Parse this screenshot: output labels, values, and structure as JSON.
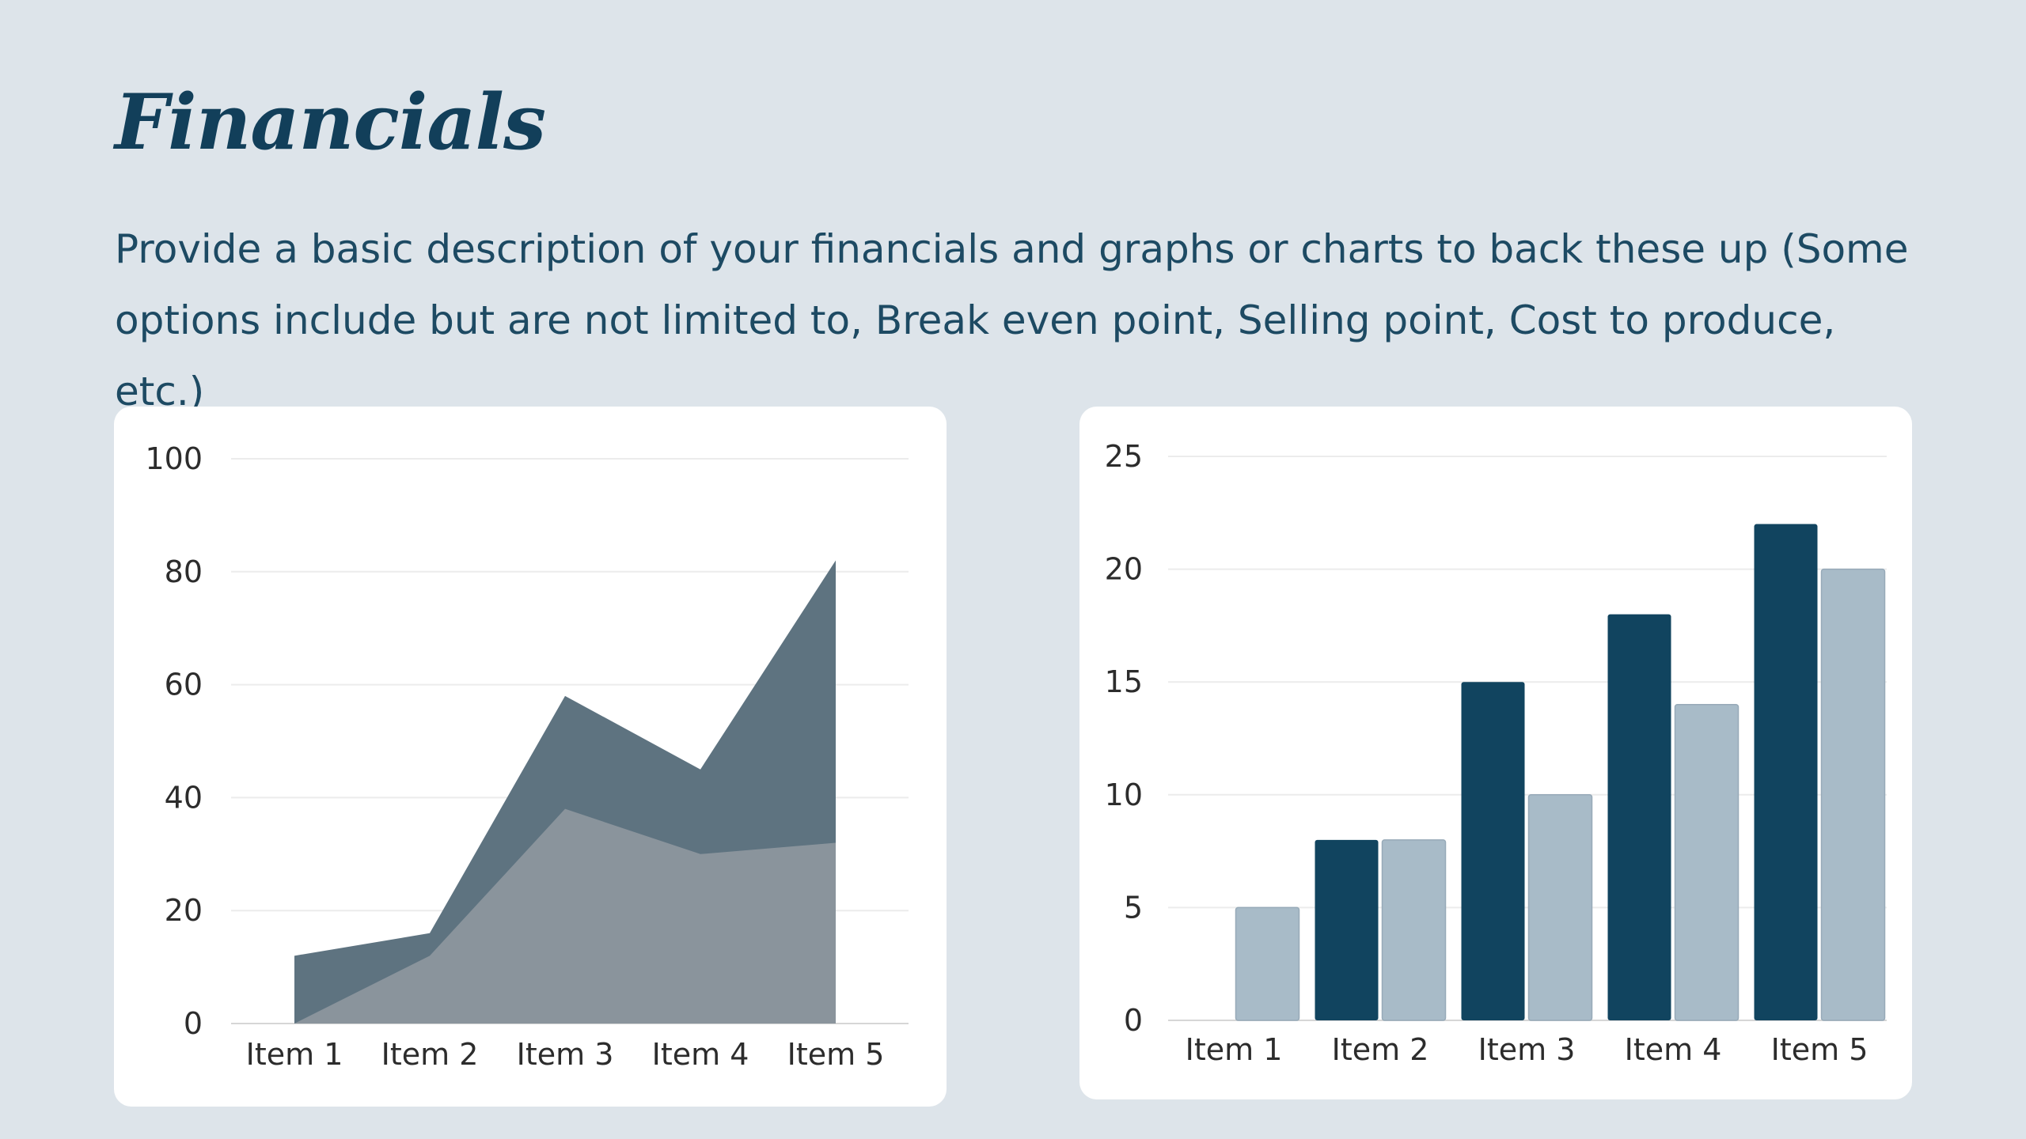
{
  "header": {
    "title": "Financials",
    "description": "Provide a basic description of your financials and graphs or charts to back these up (Some options include but are not limited to, Break even point, Selling point, Cost to produce, etc.)"
  },
  "colors": {
    "background": "#dde4ea",
    "title": "#123f5a",
    "area_back": "#5e7380",
    "area_front": "#8a949c",
    "bar_dark": "#11445f",
    "bar_light": "#a8bbc8",
    "gridline": "#ececec"
  },
  "chart_data": [
    {
      "type": "area",
      "categories": [
        "Item 1",
        "Item 2",
        "Item 3",
        "Item 4",
        "Item 5"
      ],
      "series": [
        {
          "values": [
            12,
            16,
            58,
            45,
            82
          ]
        },
        {
          "values": [
            0,
            12,
            38,
            30,
            32
          ]
        }
      ],
      "ylim": [
        0,
        100
      ],
      "yticks": [
        0,
        20,
        40,
        60,
        80,
        100
      ],
      "grid": true,
      "title": "",
      "xlabel": "",
      "ylabel": ""
    },
    {
      "type": "bar",
      "categories": [
        "Item 1",
        "Item 2",
        "Item 3",
        "Item 4",
        "Item 5"
      ],
      "series": [
        {
          "values": [
            0,
            8,
            15,
            18,
            22
          ]
        },
        {
          "values": [
            5,
            8,
            10,
            14,
            20
          ]
        }
      ],
      "ylim": [
        0,
        25
      ],
      "yticks": [
        0,
        5,
        10,
        15,
        20,
        25
      ],
      "grid": true,
      "title": "",
      "xlabel": "",
      "ylabel": ""
    }
  ]
}
